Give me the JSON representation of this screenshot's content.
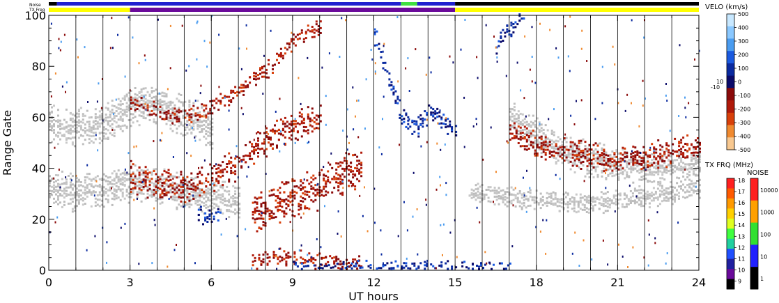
{
  "chart_data": {
    "type": "heatmap",
    "xlabel": "UT hours",
    "ylabel": "Range Gate",
    "xlim": [
      0,
      24
    ],
    "ylim": [
      0,
      100
    ],
    "x_ticks": [
      "0",
      "3",
      "6",
      "9",
      "12",
      "15",
      "18",
      "21",
      "24"
    ],
    "y_ticks": [
      "0",
      "20",
      "40",
      "60",
      "80",
      "100"
    ],
    "top_bars": {
      "noise_label": "Noise",
      "txfreq_label": "TX Freq",
      "txfreq_segments": [
        {
          "start": 0,
          "end": 3,
          "color": "#ffff00"
        },
        {
          "start": 3,
          "end": 15,
          "color": "#6a0a9a"
        },
        {
          "start": 15,
          "end": 24,
          "color": "#ffff00"
        }
      ],
      "noise_segments": [
        {
          "start": 0,
          "end": 0.3,
          "color": "#000000"
        },
        {
          "start": 0.3,
          "end": 13,
          "color": "#2020d0"
        },
        {
          "start": 13,
          "end": 13.6,
          "color": "#40e040"
        },
        {
          "start": 13.6,
          "end": 15,
          "color": "#2020d0"
        },
        {
          "start": 15,
          "end": 24,
          "color": "#000000"
        }
      ]
    },
    "velocity_scale": {
      "title": "VELO (km/s)",
      "ticks": [
        "500",
        "400",
        "300",
        "200",
        "100",
        "0",
        "-100",
        "-200",
        "-300",
        "-400",
        "-500"
      ],
      "side_labels": [
        "10",
        "-10"
      ],
      "colors": [
        "#c8e8ff",
        "#8ac8ff",
        "#4a9cf0",
        "#1a5ae0",
        "#0a2aa0",
        "#0a0a6a",
        "#8a0a0a",
        "#b01a0a",
        "#d8400a",
        "#f08a30",
        "#f8c890"
      ]
    },
    "txfreq_scale": {
      "title": "TX FRQ (MHz)",
      "ticks": [
        "18",
        "17",
        "16",
        "15",
        "14",
        "13",
        "12",
        "11",
        "10",
        "9"
      ],
      "colors": [
        "#ff2020",
        "#ff5a00",
        "#ff9a00",
        "#ffd000",
        "#e0ff20",
        "#40ff40",
        "#20d0a0",
        "#2050ff",
        "#2020a0",
        "#6a0a9a",
        "#000000"
      ]
    },
    "noise_scale": {
      "title": "NOISE",
      "ticks": [
        "10000",
        "1000",
        "100",
        "10",
        "1"
      ],
      "colors": [
        "#ff2020",
        "#ffa000",
        "#30e030",
        "#2020ff",
        "#000000"
      ]
    },
    "bands": [
      {
        "name": "gs-upper-early",
        "kind": "ground",
        "x": [
          0,
          0.5,
          1,
          1.5,
          2,
          2.5,
          3,
          3.5,
          4,
          4.5,
          5,
          5.5,
          6
        ],
        "y": [
          58,
          55,
          57,
          55,
          58,
          60,
          64,
          66,
          64,
          62,
          60,
          58,
          55
        ],
        "w": 8
      },
      {
        "name": "gs-middle-early",
        "kind": "ground",
        "x": [
          0,
          1,
          2,
          3,
          4,
          5,
          6,
          7
        ],
        "y": [
          32,
          30,
          31,
          34,
          33,
          30,
          28,
          26
        ],
        "w": 7
      },
      {
        "name": "gs-late-main",
        "kind": "ground",
        "x": [
          17,
          18,
          19,
          20,
          21,
          22,
          23,
          24
        ],
        "y": [
          60,
          52,
          46,
          43,
          41,
          40,
          40,
          41
        ],
        "w": 7
      },
      {
        "name": "gs-late-lower",
        "kind": "ground",
        "x": [
          15.5,
          16.5,
          18,
          19.5,
          21,
          22.5,
          24
        ],
        "y": [
          30,
          29,
          27,
          26,
          27,
          29,
          32
        ],
        "w": 4
      },
      {
        "name": "red-upper-rise",
        "kind": "negative",
        "x": [
          3,
          4,
          5,
          6,
          7,
          8,
          9,
          10
        ],
        "y": [
          66,
          62,
          60,
          64,
          70,
          78,
          90,
          95
        ],
        "w": 3
      },
      {
        "name": "red-middle-rise",
        "kind": "negative",
        "x": [
          3,
          4,
          5,
          6,
          7,
          8,
          9,
          10
        ],
        "y": [
          36,
          34,
          32,
          36,
          42,
          50,
          56,
          60
        ],
        "w": 6
      },
      {
        "name": "red-lower-blob",
        "kind": "negative",
        "x": [
          7.5,
          8,
          8.5,
          9,
          9.5,
          10,
          10.5,
          11,
          11.5
        ],
        "y": [
          22,
          24,
          26,
          28,
          30,
          32,
          35,
          38,
          40
        ],
        "w": 8
      },
      {
        "name": "red-bottom-strip",
        "kind": "negative",
        "x": [
          7.5,
          8.5,
          9.5,
          10.5,
          11.5
        ],
        "y": [
          3,
          5,
          4,
          3,
          2
        ],
        "w": 3
      },
      {
        "name": "red-late",
        "kind": "negative",
        "x": [
          17,
          18,
          19,
          20,
          21,
          22,
          23,
          24
        ],
        "y": [
          54,
          48,
          46,
          44,
          43,
          44,
          46,
          48
        ],
        "w": 5
      },
      {
        "name": "blue-bottom",
        "kind": "positive",
        "x": [
          9,
          10,
          11,
          12,
          13,
          14,
          15,
          16,
          17
        ],
        "y": [
          1,
          1,
          1,
          1,
          1,
          1,
          1,
          1,
          1
        ],
        "w": 2
      },
      {
        "name": "blue-midday",
        "kind": "positive",
        "x": [
          12,
          13,
          13.5,
          14,
          14.5,
          15
        ],
        "y": [
          92,
          60,
          55,
          62,
          58,
          55
        ],
        "w": 4
      },
      {
        "name": "blue-late-rise",
        "kind": "positive",
        "x": [
          16.5,
          17,
          17.5
        ],
        "y": [
          88,
          95,
          100
        ],
        "w": 4
      },
      {
        "name": "blue-six",
        "kind": "positive",
        "x": [
          5.5,
          6,
          6.3
        ],
        "y": [
          22,
          20,
          22
        ],
        "w": 3
      }
    ]
  }
}
